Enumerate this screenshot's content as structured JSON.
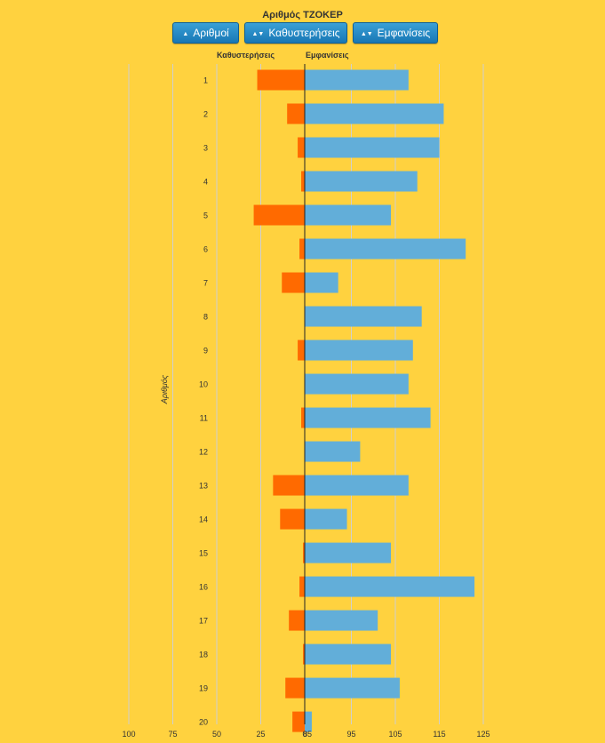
{
  "buttons": [
    {
      "label": "Αριθμοί",
      "icon": "sort-up-icon"
    },
    {
      "label": "Καθυστερήσεις",
      "icon": "sort-both-icon"
    },
    {
      "label": "Εμφανίσεις",
      "icon": "sort-both-icon"
    }
  ],
  "chart_data": {
    "type": "bar",
    "title": "Αριθμός ΤΖΟΚΕΡ",
    "ylabel": "Αριθμός",
    "left_header": "Καθυστερήσεις",
    "right_header": "Εμφανίσεις",
    "categories": [
      "1",
      "2",
      "3",
      "4",
      "5",
      "6",
      "7",
      "8",
      "9",
      "10",
      "11",
      "12",
      "13",
      "14",
      "15",
      "16",
      "17",
      "18",
      "19",
      "20"
    ],
    "series": [
      {
        "name": "Καθυστερήσεις",
        "color": "#FF6A00",
        "values": [
          27,
          10,
          4,
          2,
          29,
          3,
          13,
          0,
          4,
          0,
          2,
          0,
          18,
          14,
          1,
          3,
          9,
          1,
          11,
          7
        ]
      },
      {
        "name": "Εμφανίσεις",
        "color": "#62AED9",
        "values": [
          108,
          116,
          115,
          110,
          104,
          121,
          92,
          111,
          109,
          108,
          113,
          97,
          108,
          94,
          104,
          123,
          101,
          104,
          106,
          86
        ]
      }
    ],
    "left_ticks": [
      "100",
      "75",
      "50",
      "25",
      "0"
    ],
    "right_ticks": [
      "85",
      "95",
      "105",
      "115",
      "125"
    ],
    "left_range": [
      0,
      100
    ],
    "right_range": [
      85,
      125
    ],
    "grid": true
  }
}
